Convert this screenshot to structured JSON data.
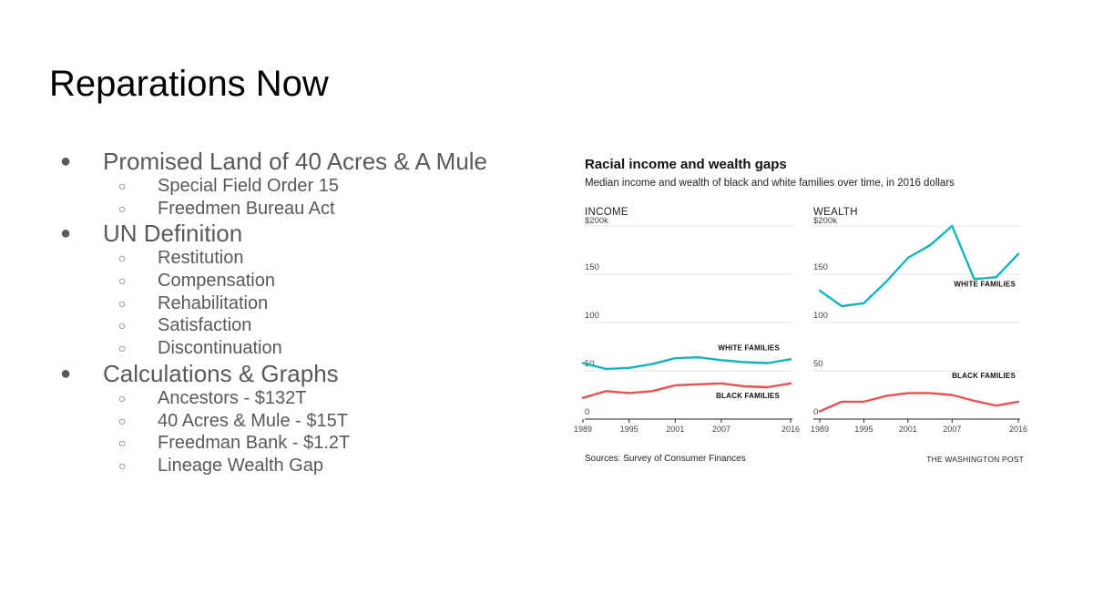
{
  "slide": {
    "title": "Reparations Now",
    "bullets": [
      {
        "text": "Promised Land of 40 Acres & A Mule",
        "children": [
          "Special Field Order 15",
          "Freedmen Bureau Act"
        ]
      },
      {
        "text": "UN Definition",
        "children": [
          "Restitution",
          "Compensation",
          "Rehabilitation",
          "Satisfaction",
          "Discontinuation"
        ]
      },
      {
        "text": "Calculations & Graphs",
        "children": [
          "Ancestors - $132T",
          "40 Acres & Mule - $15T",
          "Freedman Bank - $1.2T",
          "Lineage Wealth Gap"
        ]
      }
    ],
    "bullet_glyph": "●",
    "sub_bullet_glyph": "○"
  },
  "chart_data": {
    "title": "Racial income and wealth gaps",
    "subtitle": "Median income and wealth of black and white families over time, in 2016 dollars",
    "source": "Sources: Survey of Consumer Finances",
    "credit": "THE WASHINGTON POST",
    "x": [
      1989,
      1992,
      1995,
      1998,
      2001,
      2004,
      2007,
      2010,
      2013,
      2016
    ],
    "x_ticks": [
      "1989",
      "1995",
      "2001",
      "2007",
      "2016"
    ],
    "panels": [
      {
        "name": "INCOME",
        "type": "line",
        "ylim": [
          0,
          200
        ],
        "y_ticks": [
          "$200k",
          "150",
          "100",
          "50",
          "0"
        ],
        "grid": true,
        "series": [
          {
            "name": "WHITE FAMILIES",
            "color": "#12b3c0",
            "values": [
              58,
              52,
              53,
              57,
              63,
              64,
              61,
              59,
              58,
              62
            ]
          },
          {
            "name": "BLACK FAMILIES",
            "color": "#e8524f",
            "values": [
              22,
              29,
              27,
              29,
              35,
              36,
              37,
              34,
              33,
              37
            ]
          }
        ]
      },
      {
        "name": "WEALTH",
        "type": "line",
        "ylim": [
          0,
          200
        ],
        "y_ticks": [
          "$200k",
          "150",
          "100",
          "50",
          "0"
        ],
        "grid": true,
        "series": [
          {
            "name": "WHITE FAMILIES",
            "color": "#12b3c0",
            "values": [
              133,
              117,
              120,
              142,
              167,
              180,
              200,
              145,
              147,
              171
            ]
          },
          {
            "name": "BLACK FAMILIES",
            "color": "#e8524f",
            "values": [
              8,
              18,
              18,
              24,
              27,
              27,
              25,
              19,
              14,
              18
            ]
          }
        ]
      }
    ]
  }
}
